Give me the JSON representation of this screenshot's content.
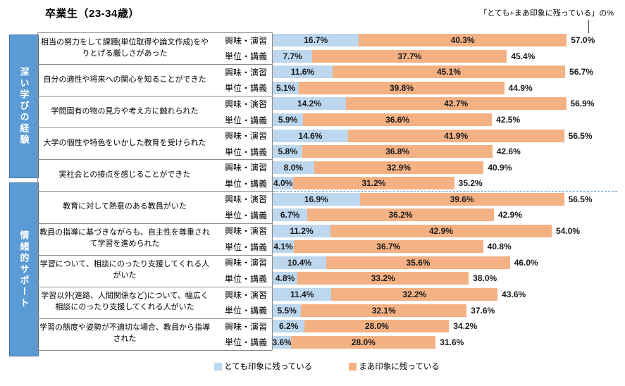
{
  "chart_data": {
    "type": "bar",
    "orientation": "horizontal-stacked",
    "title": "卒業生（23-34歳）",
    "note": "「とても+まあ印象に残っている」の%",
    "value_unit": "%",
    "series_names": [
      "とても印象に残っている",
      "まあ印象に残っている"
    ],
    "legend": [
      {
        "label": "とても印象に残っている",
        "color": "#BDD7EE"
      },
      {
        "label": "まあ印象に残っている",
        "color": "#F4B183"
      }
    ],
    "colors": {
      "very": "#BDD7EE",
      "somewhat": "#F4B183",
      "group_box": "#5B9BD5",
      "group_box_border": "#41719C",
      "table_border": "#8c8c8c",
      "group_separator_dash": "#5B9BD5"
    },
    "groups": [
      {
        "name": "深い学びの経験",
        "items": [
          {
            "question": "相当の努力をして課題(単位取得や論文作成)をやりとげる厳しさがあった",
            "rows": [
              {
                "label": "興味・演習",
                "very": 16.7,
                "somewhat": 40.3,
                "total": 57.0
              },
              {
                "label": "単位・講義",
                "very": 7.7,
                "somewhat": 37.7,
                "total": 45.4
              }
            ]
          },
          {
            "question": "自分の適性や将来への関心を知ることができた",
            "rows": [
              {
                "label": "興味・演習",
                "very": 11.6,
                "somewhat": 45.1,
                "total": 56.7
              },
              {
                "label": "単位・講義",
                "very": 5.1,
                "somewhat": 39.8,
                "total": 44.9
              }
            ]
          },
          {
            "question": "学問固有の物の見方や考え方に触れられた",
            "rows": [
              {
                "label": "興味・演習",
                "very": 14.2,
                "somewhat": 42.7,
                "total": 56.9
              },
              {
                "label": "単位・講義",
                "very": 5.9,
                "somewhat": 36.6,
                "total": 42.5
              }
            ]
          },
          {
            "question": "大学の個性や特色をいかした教育を受けられた",
            "rows": [
              {
                "label": "興味・演習",
                "very": 14.6,
                "somewhat": 41.9,
                "total": 56.5
              },
              {
                "label": "単位・講義",
                "very": 5.8,
                "somewhat": 36.8,
                "total": 42.6
              }
            ]
          },
          {
            "question": "実社会との接点を感じることができた",
            "rows": [
              {
                "label": "興味・演習",
                "very": 8.0,
                "somewhat": 32.9,
                "total": 40.9
              },
              {
                "label": "単位・講義",
                "very": 4.0,
                "somewhat": 31.2,
                "total": 35.2
              }
            ]
          }
        ]
      },
      {
        "name": "情緒的サポート",
        "items": [
          {
            "question": "教育に対して熱意のある教員がいた",
            "rows": [
              {
                "label": "興味・演習",
                "very": 16.9,
                "somewhat": 39.6,
                "total": 56.5
              },
              {
                "label": "単位・講義",
                "very": 6.7,
                "somewhat": 36.2,
                "total": 42.9
              }
            ]
          },
          {
            "question": "教員の指導に基づきながらも、自主性を尊重されて学習を進められた",
            "rows": [
              {
                "label": "興味・演習",
                "very": 11.2,
                "somewhat": 42.9,
                "total": 54.0
              },
              {
                "label": "単位・講義",
                "very": 4.1,
                "somewhat": 36.7,
                "total": 40.8
              }
            ]
          },
          {
            "question": "学習について、相談にのったり支援してくれる人がいた",
            "rows": [
              {
                "label": "興味・演習",
                "very": 10.4,
                "somewhat": 35.6,
                "total": 46.0
              },
              {
                "label": "単位・講義",
                "very": 4.8,
                "somewhat": 33.2,
                "total": 38.0
              }
            ]
          },
          {
            "question": "学習以外(進路、人間関係など)について、幅広く相談にのったり支援してくれる人がいた",
            "rows": [
              {
                "label": "興味・演習",
                "very": 11.4,
                "somewhat": 32.2,
                "total": 43.6
              },
              {
                "label": "単位・講義",
                "very": 5.5,
                "somewhat": 32.1,
                "total": 37.6
              }
            ]
          },
          {
            "question": "学習の態度や姿勢が不適切な場合、教員から指導された",
            "rows": [
              {
                "label": "興味・演習",
                "very": 6.2,
                "somewhat": 28.0,
                "total": 34.2
              },
              {
                "label": "単位・講義",
                "very": 3.6,
                "somewhat": 28.0,
                "total": 31.6
              }
            ]
          }
        ]
      }
    ]
  }
}
